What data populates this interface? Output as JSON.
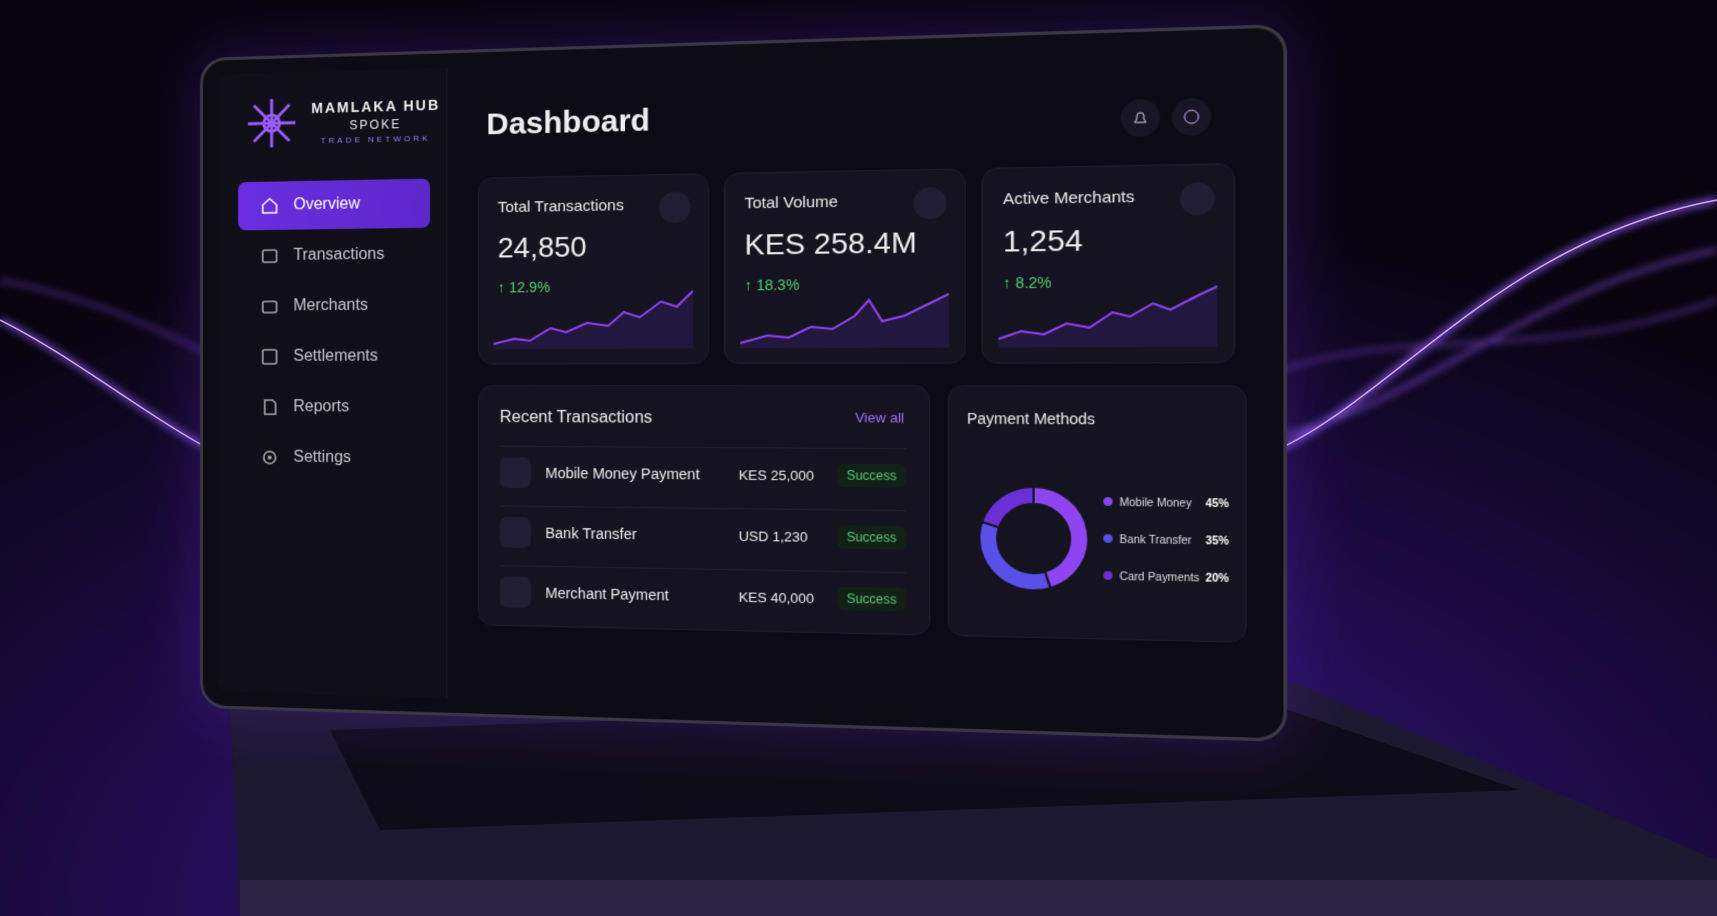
{
  "brand": {
    "name": "MAMLAKA HUB",
    "sub": "SPOKE",
    "tagline": "TRADE NETWORK"
  },
  "nav": [
    "Overview",
    "Transactions",
    "Merchants",
    "Settlements",
    "Reports",
    "Settings"
  ],
  "header": {
    "title": "Dashboard"
  },
  "stats": [
    {
      "title": "Total Transactions",
      "value": "24,850",
      "change": "12.9%"
    },
    {
      "title": "Total Volume",
      "value": "KES 258.4M",
      "change": "18.3%"
    },
    {
      "title": "Active Merchants",
      "value": "1,254",
      "change": "8.2%"
    }
  ],
  "recent": {
    "title": "Recent Transactions",
    "link": "View all",
    "rows": [
      {
        "name": "Mobile Money Payment",
        "amount": "KES 25,000",
        "status": "Success"
      },
      {
        "name": "Bank Transfer",
        "amount": "USD 1,230",
        "status": "Success"
      },
      {
        "name": "Merchant Payment",
        "amount": "KES 40,000",
        "status": "Success"
      }
    ]
  },
  "payment_methods": {
    "type": "pie",
    "title": "Payment Methods",
    "categories": [
      "Mobile Money",
      "Bank Transfer",
      "Card Payments"
    ],
    "values": [
      45,
      35,
      20
    ],
    "value_labels": [
      "45%",
      "35%",
      "20%"
    ],
    "colors": [
      "#8c45f0",
      "#5a4fe6",
      "#6b2fd6"
    ]
  }
}
